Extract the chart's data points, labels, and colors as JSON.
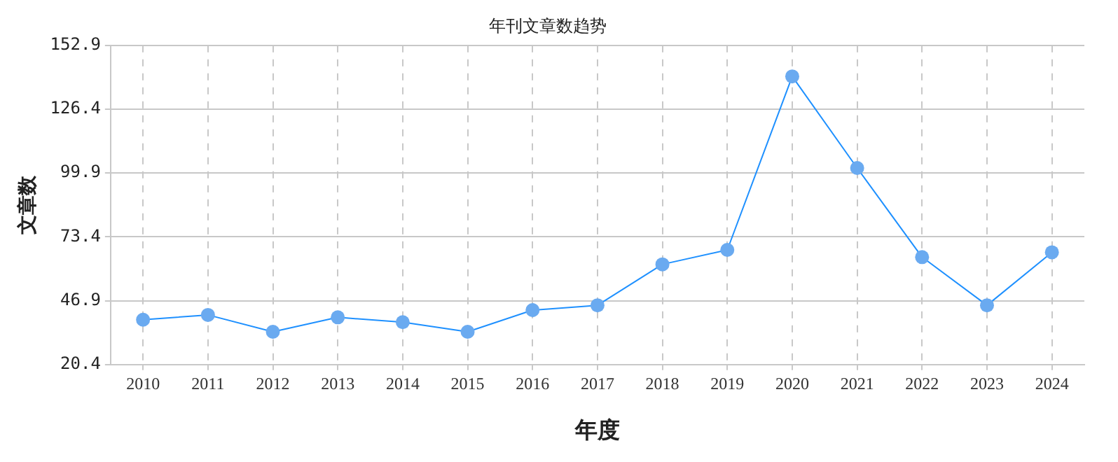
{
  "chart_data": {
    "type": "line",
    "title": "年刊文章数趋势",
    "xlabel": "年度",
    "ylabel": "文章数",
    "categories": [
      "2010",
      "2011",
      "2012",
      "2013",
      "2014",
      "2015",
      "2016",
      "2017",
      "2018",
      "2019",
      "2020",
      "2021",
      "2022",
      "2023",
      "2024"
    ],
    "series": [
      {
        "color": "#1e90ff",
        "values": [
          39,
          41,
          34,
          40,
          38,
          34,
          43,
          45,
          62,
          68,
          140,
          102,
          65,
          45,
          67
        ]
      }
    ],
    "ylim": [
      20.4,
      152.9
    ],
    "yticks": [
      20.4,
      46.9,
      73.4,
      99.9,
      126.4,
      152.9
    ],
    "grid": true,
    "marker": "circle",
    "line_style": "solid"
  }
}
